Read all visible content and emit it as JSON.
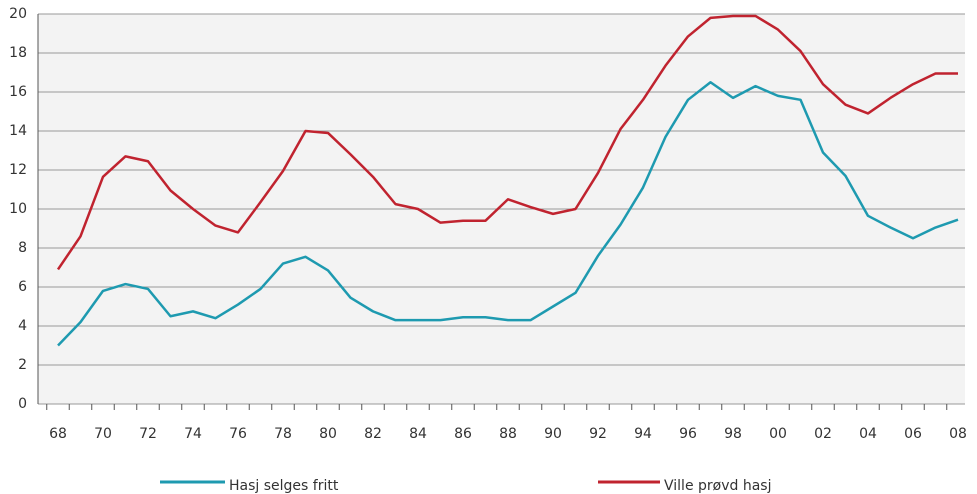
{
  "chart_data": {
    "type": "line",
    "categories": [
      "68",
      null,
      "70",
      null,
      "72",
      null,
      "74",
      null,
      "76",
      null,
      "78",
      null,
      "80",
      null,
      "82",
      null,
      "84",
      null,
      "86",
      null,
      "88",
      null,
      "90",
      null,
      "92",
      null,
      "94",
      null,
      "96",
      null,
      "98",
      null,
      "00",
      null,
      "02",
      null,
      "04",
      null,
      "06",
      null,
      "08"
    ],
    "series": [
      {
        "name": "Hasj selges fritt",
        "color": "#1e9ab0",
        "values": [
          3.0,
          4.2,
          5.8,
          6.15,
          5.9,
          4.5,
          4.75,
          4.4,
          5.1,
          5.9,
          7.2,
          7.55,
          6.85,
          5.45,
          4.75,
          4.3,
          4.3,
          4.3,
          4.45,
          4.45,
          4.3,
          4.3,
          5.0,
          5.7,
          7.6,
          9.2,
          11.1,
          13.7,
          15.6,
          16.5,
          15.7,
          16.3,
          15.8,
          15.6,
          12.9,
          11.7,
          9.65,
          9.05,
          8.5,
          9.05,
          9.45
        ]
      },
      {
        "name": "Ville prøvd hasj",
        "color": "#c0232f",
        "values": [
          6.9,
          8.6,
          11.65,
          12.7,
          12.45,
          10.95,
          10.0,
          9.15,
          8.8,
          10.35,
          11.95,
          14.0,
          13.9,
          12.8,
          11.65,
          10.25,
          10.0,
          9.3,
          9.4,
          9.4,
          10.5,
          10.1,
          9.75,
          10.0,
          11.85,
          14.1,
          15.6,
          17.35,
          18.85,
          19.8,
          19.9,
          19.9,
          19.2,
          18.1,
          16.4,
          15.35,
          14.9,
          15.7,
          16.4,
          16.95,
          16.95
        ]
      }
    ],
    "ylim": [
      0,
      20
    ],
    "yticks": [
      0,
      2,
      4,
      6,
      8,
      10,
      12,
      14,
      16,
      18,
      20
    ],
    "grid": true,
    "legend": "bottom"
  }
}
